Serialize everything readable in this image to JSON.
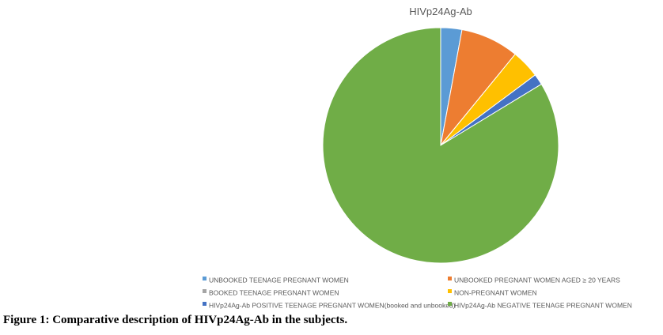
{
  "chart_data": {
    "type": "pie",
    "title": "HIVp24Ag-Ab",
    "categories": [
      "UNBOOKED TEENAGE PREGNANT WOMEN",
      "UNBOOKED PREGNANT WOMEN AGED ≥ 20 YEARS",
      "BOOKED TEENAGE PREGNANT WOMEN",
      "NON-PREGNANT WOMEN",
      "HIVp24Ag-Ab POSITIVE TEENAGE PREGNANT WOMEN(booked and unbooked)",
      "HIVp24Ag-Ab NEGATIVE TEENAGE PREGNANT WOMEN"
    ],
    "values": [
      2.9,
      8,
      0,
      3.9,
      1.5,
      83.7
    ],
    "colors": [
      "#5b9bd5",
      "#ed7d31",
      "#a5a5a5",
      "#ffc000",
      "#4472c4",
      "#70ad47"
    ],
    "legend": "bottom"
  },
  "caption": "Figure 1: Comparative description of HIVp24Ag-Ab in the subjects."
}
